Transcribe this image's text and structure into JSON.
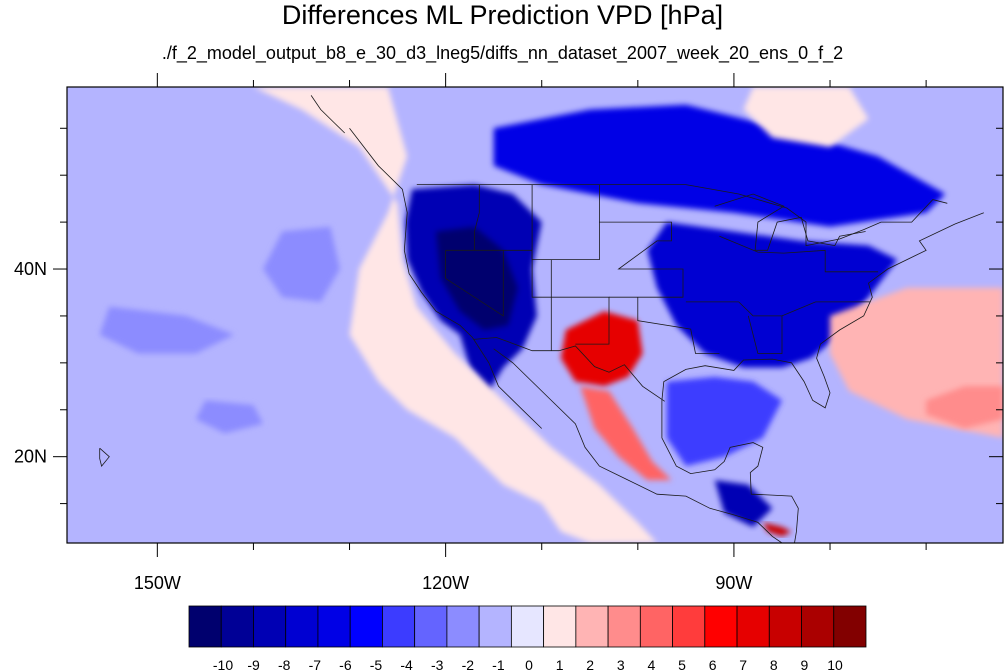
{
  "title": "Differences ML Prediction VPD [hPa]",
  "subtitle": "./f_2_model_output_b8_e_30_d3_lneg5/diffs_nn_dataset_2007_week_20_ens_0_f_2",
  "map": {
    "lon_range": [
      -159.4,
      -62.0
    ],
    "lat_range": [
      10.8,
      59.4
    ],
    "lon_ticks": [
      {
        "value": -150,
        "label": "150W"
      },
      {
        "value": -120,
        "label": "120W"
      },
      {
        "value": -90,
        "label": "90W"
      }
    ],
    "lat_ticks": [
      {
        "value": 40,
        "label": "40N"
      },
      {
        "value": 20,
        "label": "20N"
      }
    ],
    "minor_lon": [
      -160,
      -140,
      -130,
      -110,
      -100,
      -80,
      -70
    ],
    "minor_lat": [
      15,
      25,
      30,
      35,
      45,
      50,
      55
    ],
    "units": "hPa"
  },
  "colorbar": {
    "labels": [
      "-10",
      "-9",
      "-8",
      "-7",
      "-6",
      "-5",
      "-4",
      "-3",
      "-2",
      "-1",
      "0",
      "1",
      "2",
      "3",
      "4",
      "5",
      "6",
      "7",
      "8",
      "9",
      "10"
    ],
    "colors": [
      "#00006e",
      "#000096",
      "#0000b4",
      "#0000d2",
      "#0000e6",
      "#0000ff",
      "#3c3cff",
      "#6464ff",
      "#8c8cff",
      "#b4b4ff",
      "#e6e6ff",
      "#ffe6e6",
      "#ffb4b4",
      "#ff8c8c",
      "#ff6464",
      "#ff3c3c",
      "#ff0000",
      "#e60000",
      "#c80000",
      "#aa0000",
      "#820000"
    ]
  },
  "chart_data": {
    "type": "heatmap",
    "title": "Differences ML Prediction VPD [hPa]",
    "subtitle": "./f_2_model_output_b8_e_30_d3_lneg5/diffs_nn_dataset_2007_week_20_ens_0_f_2",
    "x_tick_labels": [
      "150W",
      "120W",
      "90W"
    ],
    "y_tick_labels": [
      "40N",
      "20N"
    ],
    "colorbar_range": [
      -10,
      10
    ],
    "background_level": -1,
    "regions": [
      {
        "name": "western-us-dry-bias",
        "level": -8,
        "points": [
          [
            -123.5,
            48.5
          ],
          [
            -117,
            49
          ],
          [
            -113,
            48
          ],
          [
            -110,
            45
          ],
          [
            -111,
            40
          ],
          [
            -110.5,
            35
          ],
          [
            -112,
            31.5
          ],
          [
            -114,
            29.5
          ],
          [
            -115.5,
            27
          ],
          [
            -117.5,
            29.5
          ],
          [
            -118.5,
            33
          ],
          [
            -120.5,
            34.5
          ],
          [
            -122.5,
            37.5
          ],
          [
            -124,
            41
          ],
          [
            -124.2,
            45
          ]
        ]
      },
      {
        "name": "great-basin-core",
        "level": -10,
        "points": [
          [
            -121,
            44
          ],
          [
            -117,
            44.5
          ],
          [
            -114,
            42
          ],
          [
            -112.5,
            38
          ],
          [
            -113.5,
            34
          ],
          [
            -116,
            33.5
          ],
          [
            -118.5,
            35.5
          ],
          [
            -120.5,
            39
          ]
        ]
      },
      {
        "name": "central-canada",
        "level": -6,
        "points": [
          [
            -115,
            55
          ],
          [
            -105,
            57
          ],
          [
            -95,
            57.5
          ],
          [
            -85,
            55
          ],
          [
            -75,
            52
          ],
          [
            -68,
            48
          ],
          [
            -70,
            46
          ],
          [
            -80,
            44.5
          ],
          [
            -90,
            46
          ],
          [
            -100,
            47
          ],
          [
            -110,
            49
          ],
          [
            -115,
            51
          ]
        ]
      },
      {
        "name": "eastern-us",
        "level": -7,
        "points": [
          [
            -97,
            45
          ],
          [
            -90,
            44
          ],
          [
            -83,
            43
          ],
          [
            -76,
            42.5
          ],
          [
            -73,
            41
          ],
          [
            -76,
            37
          ],
          [
            -79,
            33
          ],
          [
            -82,
            30.5
          ],
          [
            -85,
            29.5
          ],
          [
            -89,
            29.5
          ],
          [
            -93,
            31
          ],
          [
            -96,
            34
          ],
          [
            -98,
            38
          ],
          [
            -99,
            42
          ]
        ]
      },
      {
        "name": "gulf-negative",
        "level": -4,
        "points": [
          [
            -97,
            28
          ],
          [
            -92,
            28.5
          ],
          [
            -88,
            28
          ],
          [
            -85,
            26
          ],
          [
            -87,
            22
          ],
          [
            -91,
            20
          ],
          [
            -95,
            19
          ],
          [
            -97,
            22
          ]
        ]
      },
      {
        "name": "guatemala-negative",
        "level": -8,
        "points": [
          [
            -92,
            17.5
          ],
          [
            -88.5,
            17
          ],
          [
            -86,
            14.5
          ],
          [
            -88,
            12.5
          ],
          [
            -91,
            14
          ]
        ]
      },
      {
        "name": "southwest-heat",
        "level": 7,
        "points": [
          [
            -107.5,
            33.5
          ],
          [
            -103.5,
            35.5
          ],
          [
            -100,
            34.5
          ],
          [
            -99.5,
            31
          ],
          [
            -101,
            28.5
          ],
          [
            -103.5,
            27.5
          ],
          [
            -106.5,
            28
          ],
          [
            -108,
            30.5
          ]
        ]
      },
      {
        "name": "sierra-madre-positive",
        "level": 4,
        "points": [
          [
            -106,
            27.5
          ],
          [
            -103,
            27
          ],
          [
            -100.5,
            23
          ],
          [
            -98.5,
            19.5
          ],
          [
            -96.5,
            17.5
          ],
          [
            -99,
            17.5
          ],
          [
            -102,
            20
          ],
          [
            -104.5,
            23
          ]
        ]
      },
      {
        "name": "central-america-positive",
        "level": 8,
        "points": [
          [
            -87,
            13
          ],
          [
            -85,
            12.5
          ],
          [
            -84,
            12
          ],
          [
            -85,
            11.5
          ],
          [
            -86.5,
            12
          ]
        ]
      },
      {
        "name": "atlantic-positive",
        "level": 2,
        "points": [
          [
            -80,
            35
          ],
          [
            -72,
            38
          ],
          [
            -62,
            38
          ],
          [
            -62,
            22
          ],
          [
            -72,
            24
          ],
          [
            -78,
            27
          ],
          [
            -80,
            31
          ]
        ]
      },
      {
        "name": "atlantic-core",
        "level": 3,
        "points": [
          [
            -70,
            26
          ],
          [
            -66,
            27.5
          ],
          [
            -62,
            27.5
          ],
          [
            -62,
            24
          ],
          [
            -66,
            23
          ],
          [
            -70,
            24.5
          ]
        ]
      },
      {
        "name": "hudson-bay-positive",
        "level": 1,
        "points": [
          [
            -88,
            59.4
          ],
          [
            -78,
            59.4
          ],
          [
            -76,
            56
          ],
          [
            -80,
            53
          ],
          [
            -86,
            54
          ],
          [
            -89,
            57
          ]
        ]
      },
      {
        "name": "pacific-positive",
        "level": 1,
        "points": [
          [
            -140,
            59.4
          ],
          [
            -126,
            59.4
          ],
          [
            -124,
            52
          ],
          [
            -126,
            46
          ],
          [
            -129,
            40
          ],
          [
            -130,
            33
          ],
          [
            -127,
            28
          ],
          [
            -124,
            25
          ],
          [
            -119,
            22
          ],
          [
            -114,
            17
          ],
          [
            -110,
            15
          ],
          [
            -108,
            12
          ],
          [
            -105,
            10.8
          ],
          [
            -98,
            10.8
          ],
          [
            -100,
            13
          ],
          [
            -104,
            17
          ],
          [
            -109,
            21
          ],
          [
            -114,
            26
          ],
          [
            -119,
            31
          ],
          [
            -123,
            36
          ],
          [
            -124.5,
            41
          ],
          [
            -125,
            47
          ],
          [
            -129,
            53
          ],
          [
            -135,
            57
          ]
        ]
      },
      {
        "name": "pacific-blob-1",
        "level": -2,
        "points": [
          [
            -155,
            36
          ],
          [
            -147,
            35
          ],
          [
            -142,
            33
          ],
          [
            -146,
            31
          ],
          [
            -152,
            31
          ],
          [
            -156,
            33
          ]
        ]
      },
      {
        "name": "pacific-blob-2",
        "level": -2,
        "points": [
          [
            -137,
            44
          ],
          [
            -132,
            44.5
          ],
          [
            -131,
            40
          ],
          [
            -133,
            36.5
          ],
          [
            -137,
            37
          ],
          [
            -139,
            40
          ]
        ]
      },
      {
        "name": "pacific-blob-3",
        "level": -2,
        "points": [
          [
            -145,
            26
          ],
          [
            -140,
            25.5
          ],
          [
            -139,
            23.5
          ],
          [
            -143,
            22.5
          ],
          [
            -146,
            24
          ]
        ]
      }
    ]
  }
}
